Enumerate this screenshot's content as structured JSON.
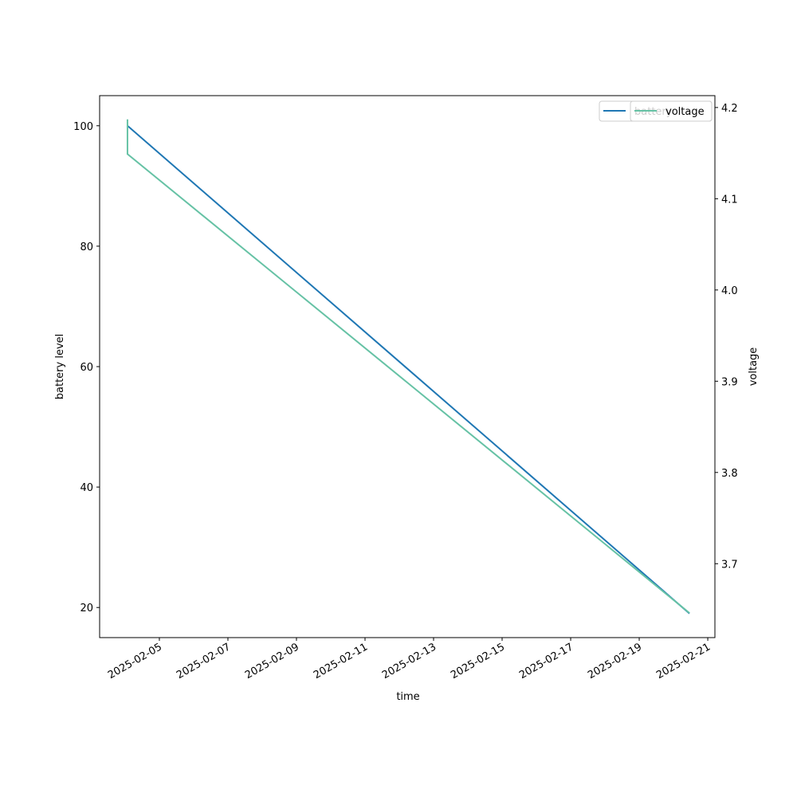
{
  "chart_data": {
    "type": "line",
    "x_label": "time",
    "y_label": "battery level",
    "y2_label": "voltage",
    "x": [
      "2025-02-04T01:40",
      "2025-02-04T01:40",
      "2025-02-20T11:10"
    ],
    "xlim": [
      "2025-02-03T06:10",
      "2025-02-21T05:00"
    ],
    "xticks": [
      "2025-02-05",
      "2025-02-07",
      "2025-02-09",
      "2025-02-11",
      "2025-02-13",
      "2025-02-15",
      "2025-02-17",
      "2025-02-19",
      "2025-02-21"
    ],
    "ylim": [
      15,
      105
    ],
    "yticks": [
      20,
      40,
      60,
      80,
      100
    ],
    "y2lim": [
      3.619,
      4.213
    ],
    "y2ticks": [
      3.7,
      3.8,
      3.9,
      {
        "value": 4,
        "label": "4.0"
      },
      4.1,
      4.2
    ],
    "series": [
      {
        "name": "battery",
        "color": "#1f77b4",
        "values": [
          100,
          100,
          19
        ]
      },
      {
        "name": "voltage",
        "color": "#66c2a5",
        "axis": "y2",
        "values": [
          4.187,
          4.149,
          3.646
        ]
      }
    ],
    "legend": "upper right"
  }
}
